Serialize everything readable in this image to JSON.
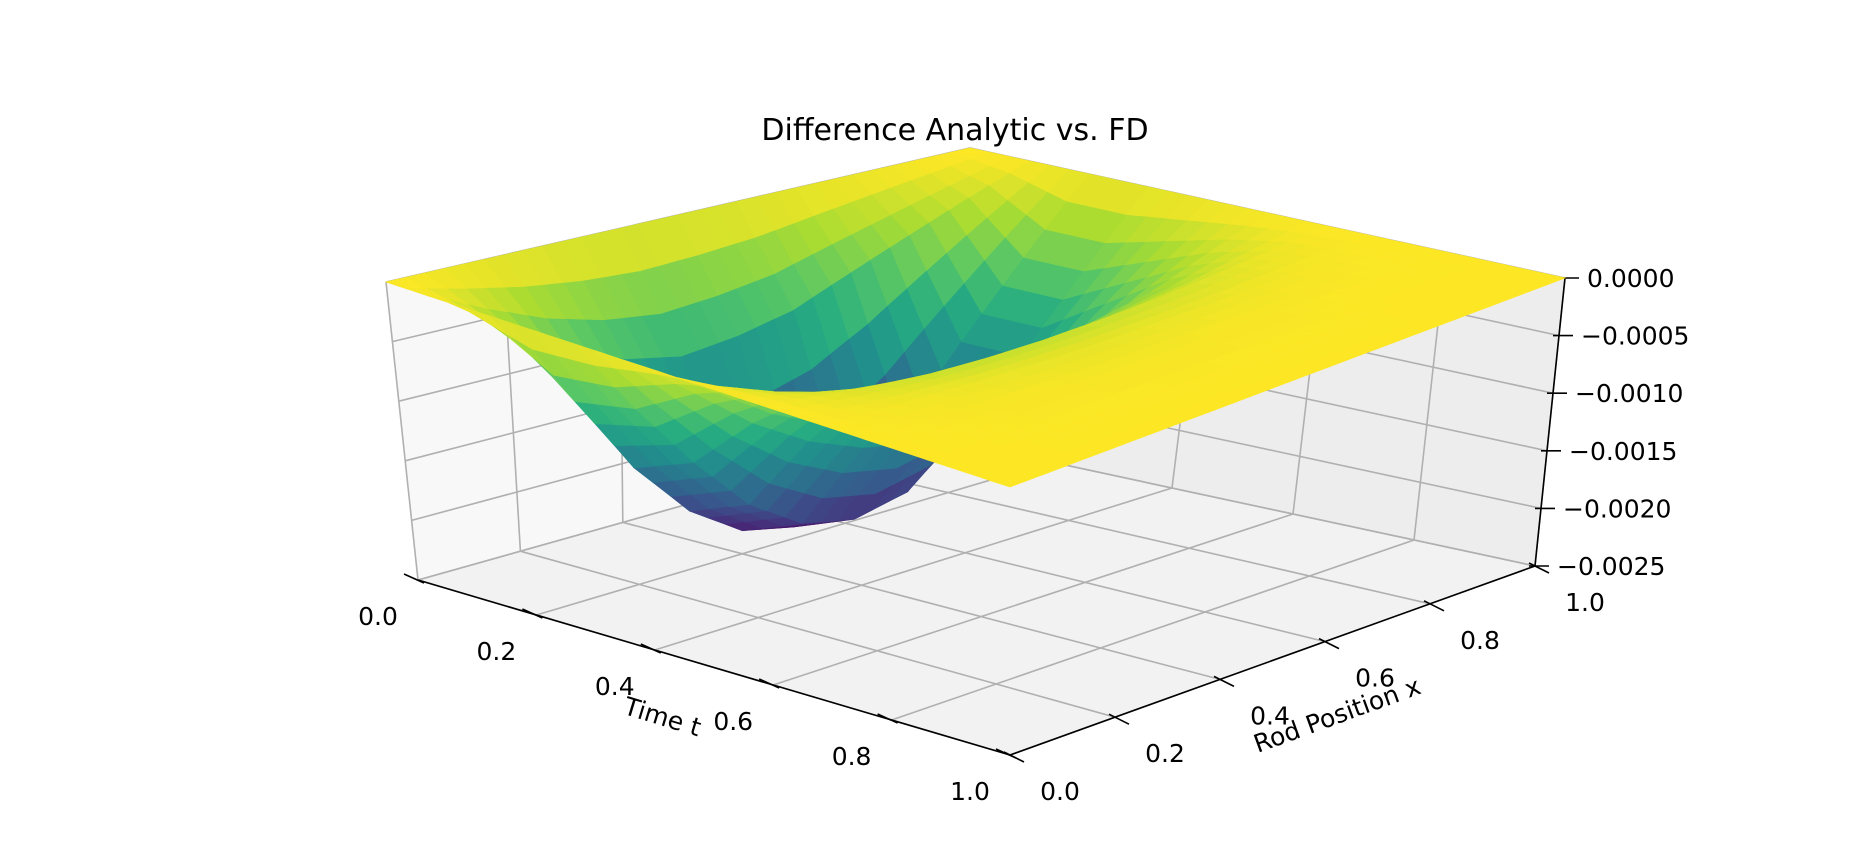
{
  "chart_data": {
    "type": "surface",
    "title": "Difference Analytic vs. FD",
    "xlabel": "Time t",
    "ylabel": "Rod Position x",
    "zlabel": "",
    "xlim": [
      0,
      1
    ],
    "ylim": [
      0,
      1
    ],
    "zlim": [
      -0.0025,
      0
    ],
    "x_ticks": [
      "0.0",
      "0.2",
      "0.4",
      "0.6",
      "0.8",
      "1.0"
    ],
    "y_ticks": [
      "0.0",
      "0.2",
      "0.4",
      "0.6",
      "0.8",
      "1.0"
    ],
    "z_ticks": [
      "0.0000",
      "−0.0005",
      "−0.0010",
      "−0.0015",
      "−0.0020",
      "−0.0025"
    ],
    "z_tick_values": [
      0,
      -0.0005,
      -0.001,
      -0.0015,
      -0.002,
      -0.0025
    ],
    "colormap": "viridis",
    "grid": true,
    "surface": {
      "description": "difference between analytic and finite-difference solution, u(t,x)",
      "t": [
        0.0,
        0.1,
        0.2,
        0.3,
        0.4,
        0.5,
        0.6,
        0.7,
        0.8,
        0.9,
        1.0
      ],
      "x": [
        0.0,
        0.1,
        0.2,
        0.3,
        0.4,
        0.5,
        0.6,
        0.7,
        0.8,
        0.9,
        1.0
      ],
      "z": [
        [
          0,
          0,
          0,
          0,
          0,
          0,
          0,
          0,
          0,
          0,
          0
        ],
        [
          0,
          -0.00035,
          -0.00065,
          -0.00085,
          -0.00095,
          -0.0009,
          -0.0008,
          -0.0006,
          -0.0004,
          -0.0002,
          0
        ],
        [
          0,
          -0.0008,
          -0.0015,
          -0.002,
          -0.0023,
          -0.0024,
          -0.0022,
          -0.0018,
          -0.0012,
          -0.0006,
          0
        ],
        [
          0,
          -0.0007,
          -0.0013,
          -0.0018,
          -0.0021,
          -0.0022,
          -0.0021,
          -0.0017,
          -0.0012,
          -0.0006,
          0
        ],
        [
          0,
          -0.0004,
          -0.0008,
          -0.0011,
          -0.0013,
          -0.0014,
          -0.0013,
          -0.0011,
          -0.0008,
          -0.0004,
          0
        ],
        [
          0,
          -0.0002,
          -0.0004,
          -0.0005,
          -0.0006,
          -0.0006,
          -0.0006,
          -0.0005,
          -0.0004,
          -0.0002,
          0
        ],
        [
          0,
          -8e-05,
          -0.00015,
          -0.0002,
          -0.00022,
          -0.00022,
          -0.0002,
          -0.00017,
          -0.00012,
          -6e-05,
          0
        ],
        [
          0,
          -3e-05,
          -5e-05,
          -7e-05,
          -8e-05,
          -8e-05,
          -7e-05,
          -6e-05,
          -4e-05,
          -2e-05,
          0
        ],
        [
          0,
          -1e-05,
          -2e-05,
          -2e-05,
          -3e-05,
          -3e-05,
          -2e-05,
          -2e-05,
          -1e-05,
          -1e-05,
          0
        ],
        [
          0,
          0,
          -1e-05,
          -1e-05,
          -1e-05,
          -1e-05,
          -1e-05,
          -1e-05,
          0,
          0,
          0
        ],
        [
          0,
          0,
          0,
          0,
          0,
          0,
          0,
          0,
          0,
          0,
          0
        ]
      ]
    }
  }
}
